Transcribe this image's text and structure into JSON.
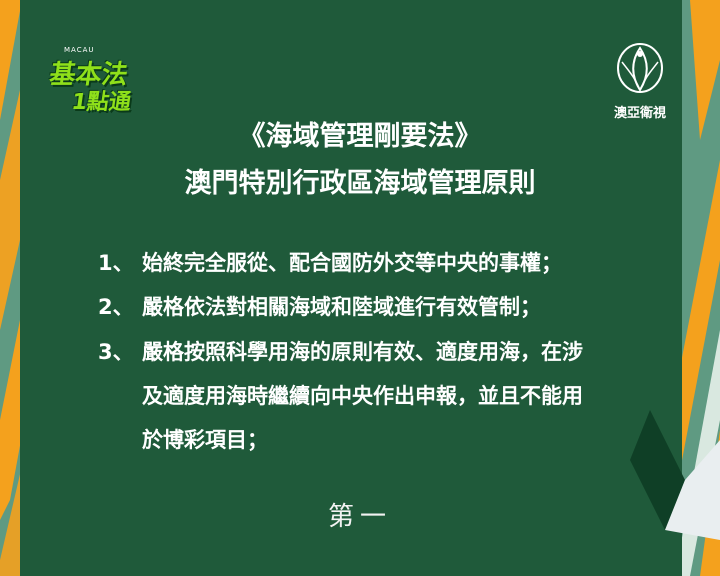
{
  "show_logo": {
    "small_text": "MACAU",
    "line1": "基本法",
    "line2": "1點通"
  },
  "channel_logo": {
    "name": "澳亞衛視",
    "icon": "peacock-emblem-icon"
  },
  "board": {
    "title_line1": "《海域管理剛要法》",
    "title_line2": "澳門特別行政區海域管理原則",
    "items": [
      {
        "num": "1、",
        "lines": [
          "始終完全服從、配合國防外交等中央的事權；"
        ]
      },
      {
        "num": "2、",
        "lines": [
          "嚴格依法對相關海域和陸域進行有效管制；"
        ]
      },
      {
        "num": "3、",
        "lines": [
          "嚴格按照科學用海的原則有效、適度用海，在涉",
          "及適度用海時繼續向中央作出申報，並且不能用",
          "於博彩項目；"
        ]
      }
    ],
    "footer": "第一"
  },
  "colors": {
    "board_green": "#1f5a3a",
    "frame_teal": "#6fa48f",
    "frame_orange": "#f4a11d",
    "logo_green": "#8fe01a"
  }
}
